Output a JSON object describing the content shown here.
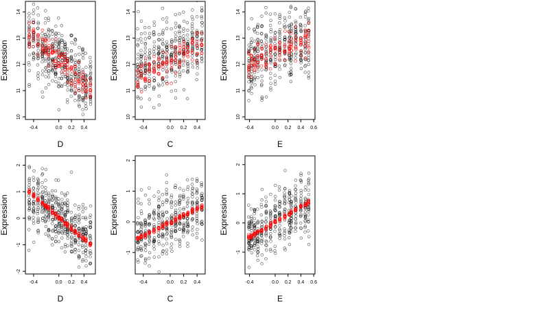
{
  "chart_data": [
    {
      "type": "scatter",
      "title": "",
      "xlabel": "D",
      "ylabel": "Expression",
      "xlim": [
        -0.53,
        0.58
      ],
      "ylim": [
        9.9,
        14.4
      ],
      "xticks": [
        -0.4,
        0.0,
        0.2,
        0.4
      ],
      "xtick_labels": [
        "-0.4",
        "0.0",
        "0.2",
        "0.4"
      ],
      "yticks": [
        10,
        11,
        12,
        13,
        14
      ],
      "ytick_labels": [
        "10",
        "11",
        "12",
        "13",
        "14"
      ],
      "grid": false,
      "x_groups": [
        -0.47,
        -0.4,
        -0.33,
        -0.26,
        -0.21,
        -0.16,
        -0.1,
        -0.05,
        0.0,
        0.05,
        0.1,
        0.14,
        0.2,
        0.26,
        0.32,
        0.38,
        0.43,
        0.5
      ],
      "observed": {
        "color": "#000000",
        "y_center_start": 13.0,
        "y_center_end": 11.2,
        "spread": 1.5,
        "points_per_group": 24
      },
      "fitted": {
        "color": "#ff0000",
        "y_start": 13.2,
        "y_end": 11.0,
        "spread": 0.55,
        "points_per_group": 8
      }
    },
    {
      "type": "scatter",
      "title": "",
      "xlabel": "C",
      "ylabel": "Expression",
      "xlim": [
        -0.52,
        0.52
      ],
      "ylim": [
        9.9,
        14.4
      ],
      "xticks": [
        -0.4,
        0.0,
        0.2,
        0.4
      ],
      "xtick_labels": [
        "-0.4",
        "0.0",
        "0.2",
        "0.4"
      ],
      "yticks": [
        10,
        11,
        12,
        13,
        14
      ],
      "ytick_labels": [
        "10",
        "11",
        "12",
        "13",
        "14"
      ],
      "grid": false,
      "x_groups": [
        -0.48,
        -0.43,
        -0.37,
        -0.31,
        -0.24,
        -0.17,
        -0.11,
        -0.05,
        0.02,
        0.08,
        0.14,
        0.2,
        0.26,
        0.33,
        0.4,
        0.47
      ],
      "observed": {
        "color": "#000000",
        "y_center_start": 11.8,
        "y_center_end": 12.9,
        "spread": 1.5,
        "points_per_group": 24
      },
      "fitted": {
        "color": "#ff0000",
        "y_start": 11.5,
        "y_end": 12.8,
        "spread": 0.55,
        "points_per_group": 8
      }
    },
    {
      "type": "scatter",
      "title": "",
      "xlabel": "E",
      "ylabel": "Expression",
      "xlim": [
        -0.47,
        0.62
      ],
      "ylim": [
        9.9,
        14.4
      ],
      "xticks": [
        -0.4,
        0.0,
        0.2,
        0.4,
        0.6
      ],
      "xtick_labels": [
        "-0.4",
        "0.0",
        "0.2",
        "0.4",
        "0.6"
      ],
      "yticks": [
        10,
        11,
        12,
        13,
        14
      ],
      "ytick_labels": [
        "10",
        "11",
        "12",
        "13",
        "14"
      ],
      "grid": false,
      "x_groups": [
        -0.41,
        -0.37,
        -0.32,
        -0.27,
        -0.21,
        -0.14,
        -0.07,
        0.0,
        0.07,
        0.15,
        0.22,
        0.25,
        0.32,
        0.4,
        0.47,
        0.52
      ],
      "observed": {
        "color": "#000000",
        "y_center_start": 12.2,
        "y_center_end": 12.9,
        "spread": 1.5,
        "points_per_group": 24
      },
      "fitted": {
        "color": "#ff0000",
        "y_start": 12.0,
        "y_end": 13.0,
        "spread": 0.55,
        "points_per_group": 8
      }
    },
    {
      "type": "scatter",
      "title": "",
      "xlabel": "D",
      "ylabel": "Expression",
      "xlim": [
        -0.53,
        0.58
      ],
      "ylim": [
        -2.1,
        2.35
      ],
      "xticks": [
        -0.4,
        0.0,
        0.2,
        0.4
      ],
      "xtick_labels": [
        "-0.4",
        "0.0",
        "0.2",
        "0.4"
      ],
      "yticks": [
        -2,
        -1,
        0,
        1,
        2
      ],
      "ytick_labels": [
        "-2",
        "-1",
        "0",
        "1",
        "2"
      ],
      "grid": false,
      "x_groups": [
        -0.47,
        -0.4,
        -0.33,
        -0.26,
        -0.21,
        -0.16,
        -0.1,
        -0.05,
        0.0,
        0.05,
        0.1,
        0.14,
        0.2,
        0.26,
        0.32,
        0.38,
        0.43,
        0.5
      ],
      "observed": {
        "color": "#000000",
        "y_center_start": 0.9,
        "y_center_end": -0.9,
        "spread": 1.3,
        "points_per_group": 24
      },
      "fitted": {
        "color": "#ff0000",
        "y_start": 1.0,
        "y_end": -1.0,
        "spread": 0.08,
        "points_per_group": 8
      }
    },
    {
      "type": "scatter",
      "title": "",
      "xlabel": "C",
      "ylabel": "Expression",
      "xlim": [
        -0.52,
        0.52
      ],
      "ylim": [
        -1.7,
        2.15
      ],
      "xticks": [
        -0.4,
        0.0,
        0.2,
        0.4
      ],
      "xtick_labels": [
        "-0.4",
        "0.0",
        "0.2",
        "0.4"
      ],
      "yticks": [
        -1,
        0,
        1,
        2
      ],
      "ytick_labels": [
        "-1",
        "0",
        "1",
        "2"
      ],
      "grid": false,
      "x_groups": [
        -0.48,
        -0.43,
        -0.37,
        -0.31,
        -0.24,
        -0.17,
        -0.11,
        -0.05,
        0.02,
        0.08,
        0.14,
        0.2,
        0.26,
        0.33,
        0.4,
        0.47
      ],
      "observed": {
        "color": "#000000",
        "y_center_start": -0.5,
        "y_center_end": 0.5,
        "spread": 1.2,
        "points_per_group": 24
      },
      "fitted": {
        "color": "#ff0000",
        "y_start": -0.55,
        "y_end": 0.5,
        "spread": 0.07,
        "points_per_group": 8
      }
    },
    {
      "type": "scatter",
      "title": "",
      "xlabel": "E",
      "ylabel": "Expression",
      "xlim": [
        -0.47,
        0.62
      ],
      "ylim": [
        -1.75,
        2.3
      ],
      "xticks": [
        -0.4,
        0.0,
        0.2,
        0.4,
        0.6
      ],
      "xtick_labels": [
        "-0.4",
        "0.0",
        "0.2",
        "0.4",
        "0.6"
      ],
      "yticks": [
        -1,
        0,
        1,
        2
      ],
      "ytick_labels": [
        "-1",
        "0",
        "1",
        "2"
      ],
      "grid": false,
      "x_groups": [
        -0.41,
        -0.37,
        -0.32,
        -0.27,
        -0.21,
        -0.14,
        -0.07,
        0.0,
        0.07,
        0.15,
        0.22,
        0.25,
        0.32,
        0.4,
        0.47,
        0.52
      ],
      "observed": {
        "color": "#000000",
        "y_center_start": -0.45,
        "y_center_end": 0.65,
        "spread": 1.2,
        "points_per_group": 24
      },
      "fitted": {
        "color": "#ff0000",
        "y_start": -0.5,
        "y_end": 0.7,
        "spread": 0.07,
        "points_per_group": 8
      }
    }
  ]
}
